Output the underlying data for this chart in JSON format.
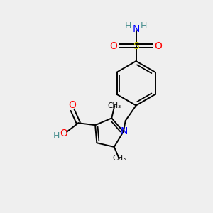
{
  "bg_color": "#efefef",
  "colors": {
    "C": "#000000",
    "H": "#4a9090",
    "N": "#0000ff",
    "O": "#ff0000",
    "S": "#cccc00"
  },
  "figsize": [
    3.0,
    3.0
  ],
  "dpi": 100
}
